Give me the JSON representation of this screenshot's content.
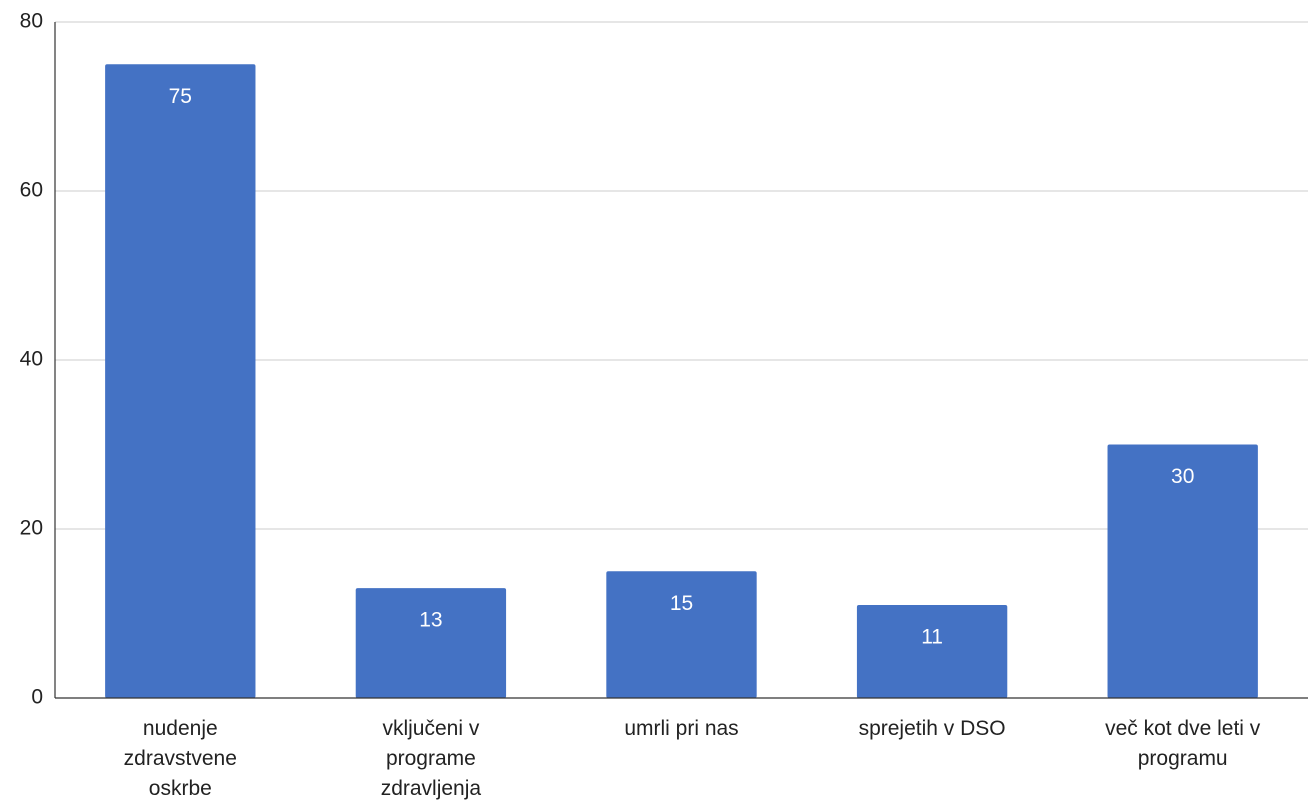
{
  "chart_data": {
    "type": "bar",
    "categories": [
      "nudenje zdravstvene oskrbe",
      "vključeni v programe zdravljenja",
      "umrli pri nas",
      "sprejetih v DSO",
      "več kot dve leti v programu"
    ],
    "values": [
      75,
      13,
      15,
      11,
      30
    ],
    "color": "#4472c4",
    "ylim": [
      0,
      80
    ],
    "yticks": [
      0,
      20,
      40,
      60,
      80
    ],
    "grid": true,
    "data_labels": true
  }
}
